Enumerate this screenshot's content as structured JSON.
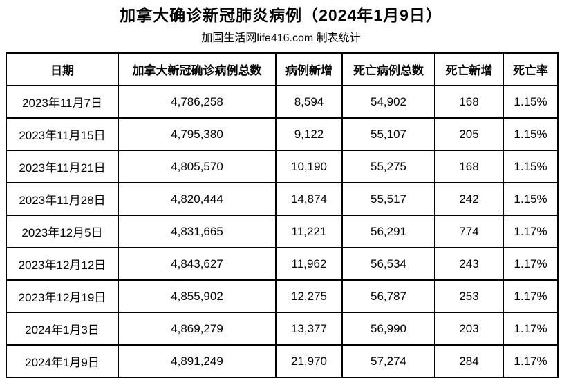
{
  "page": {
    "title": "加拿大确诊新冠肺炎病例（2024年1月9日）",
    "subtitle": "加国生活网life416.com 制表统计"
  },
  "colors": {
    "text": "#000000",
    "border": "#000000",
    "background": "#ffffff"
  },
  "chart_data": {
    "type": "table",
    "title": "加拿大确诊新冠肺炎病例（2024年1月9日）",
    "subtitle": "加国生活网life416.com 制表统计",
    "columns": [
      "日期",
      "加拿大新冠确诊病例总数",
      "病例新增",
      "死亡病例总数",
      "死亡新增",
      "死亡率"
    ],
    "rows": [
      [
        "2023年11月7日",
        "4,786,258",
        "8,594",
        "54,902",
        "168",
        "1.15%"
      ],
      [
        "2023年11月15日",
        "4,795,380",
        "9,122",
        "55,107",
        "205",
        "1.15%"
      ],
      [
        "2023年11月21日",
        "4,805,570",
        "10,190",
        "55,275",
        "168",
        "1.15%"
      ],
      [
        "2023年11月28日",
        "4,820,444",
        "14,874",
        "55,517",
        "242",
        "1.15%"
      ],
      [
        "2023年12月5日",
        "4,831,665",
        "11,221",
        "56,291",
        "774",
        "1.17%"
      ],
      [
        "2023年12月12日",
        "4,843,627",
        "11,962",
        "56,534",
        "243",
        "1.17%"
      ],
      [
        "2023年12月19日",
        "4,855,902",
        "12,275",
        "56,787",
        "253",
        "1.17%"
      ],
      [
        "2024年1月3日",
        "4,869,279",
        "13,377",
        "56,990",
        "203",
        "1.17%"
      ],
      [
        "2024年1月9日",
        "4,891,249",
        "21,970",
        "57,274",
        "284",
        "1.17%"
      ]
    ],
    "numeric": {
      "dates": [
        "2023-11-07",
        "2023-11-15",
        "2023-11-21",
        "2023-11-28",
        "2023-12-05",
        "2023-12-12",
        "2023-12-19",
        "2024-01-03",
        "2024-01-09"
      ],
      "total_cases": [
        4786258,
        4795380,
        4805570,
        4820444,
        4831665,
        4843627,
        4855902,
        4869279,
        4891249
      ],
      "new_cases": [
        8594,
        9122,
        10190,
        14874,
        11221,
        11962,
        12275,
        13377,
        21970
      ],
      "total_deaths": [
        54902,
        55107,
        55275,
        55517,
        56291,
        56534,
        56787,
        56990,
        57274
      ],
      "new_deaths": [
        168,
        205,
        168,
        242,
        774,
        243,
        253,
        203,
        284
      ],
      "death_rate_pct": [
        1.15,
        1.15,
        1.15,
        1.15,
        1.17,
        1.17,
        1.17,
        1.17,
        1.17
      ]
    }
  }
}
